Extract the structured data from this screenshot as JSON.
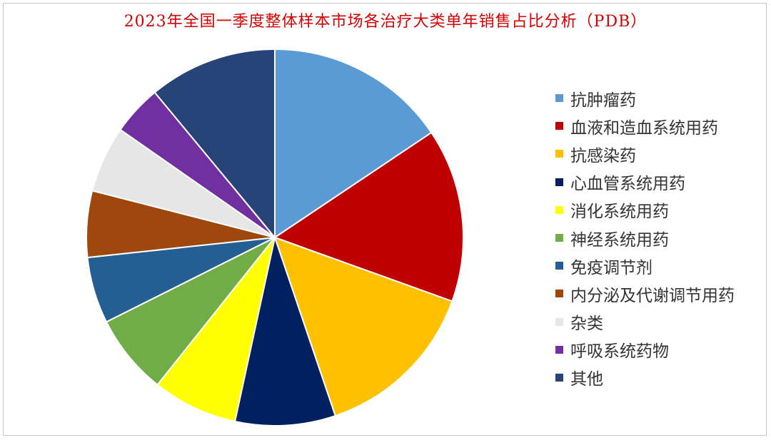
{
  "chart_data": {
    "type": "pie",
    "title": "2023年全国一季度整体样本市场各治疗大类单年销售占比分析（PDB）",
    "legend_position": "right",
    "start_angle_deg": 0,
    "direction": "clockwise",
    "slices": [
      {
        "label": "抗肿瘤药",
        "value": 15.6,
        "color": "#5B9BD5"
      },
      {
        "label": "血液和造血系统用药",
        "value": 14.9,
        "color": "#C00000"
      },
      {
        "label": "抗感染药",
        "value": 14.3,
        "color": "#FFC000"
      },
      {
        "label": "心血管系统用药",
        "value": 8.6,
        "color": "#002060"
      },
      {
        "label": "消化系统用药",
        "value": 7.3,
        "color": "#FFFF00"
      },
      {
        "label": "神经系统用药",
        "value": 6.9,
        "color": "#70AD47"
      },
      {
        "label": "免疫调节剂",
        "value": 5.7,
        "color": "#255E91"
      },
      {
        "label": "内分泌及代谢调节用药",
        "value": 5.7,
        "color": "#9E480E"
      },
      {
        "label": "杂类",
        "value": 5.7,
        "color": "#E7E6E6"
      },
      {
        "label": "呼吸系统药物",
        "value": 4.3,
        "color": "#7030A0"
      },
      {
        "label": "其他",
        "value": 11.0,
        "color": "#264478"
      }
    ]
  }
}
